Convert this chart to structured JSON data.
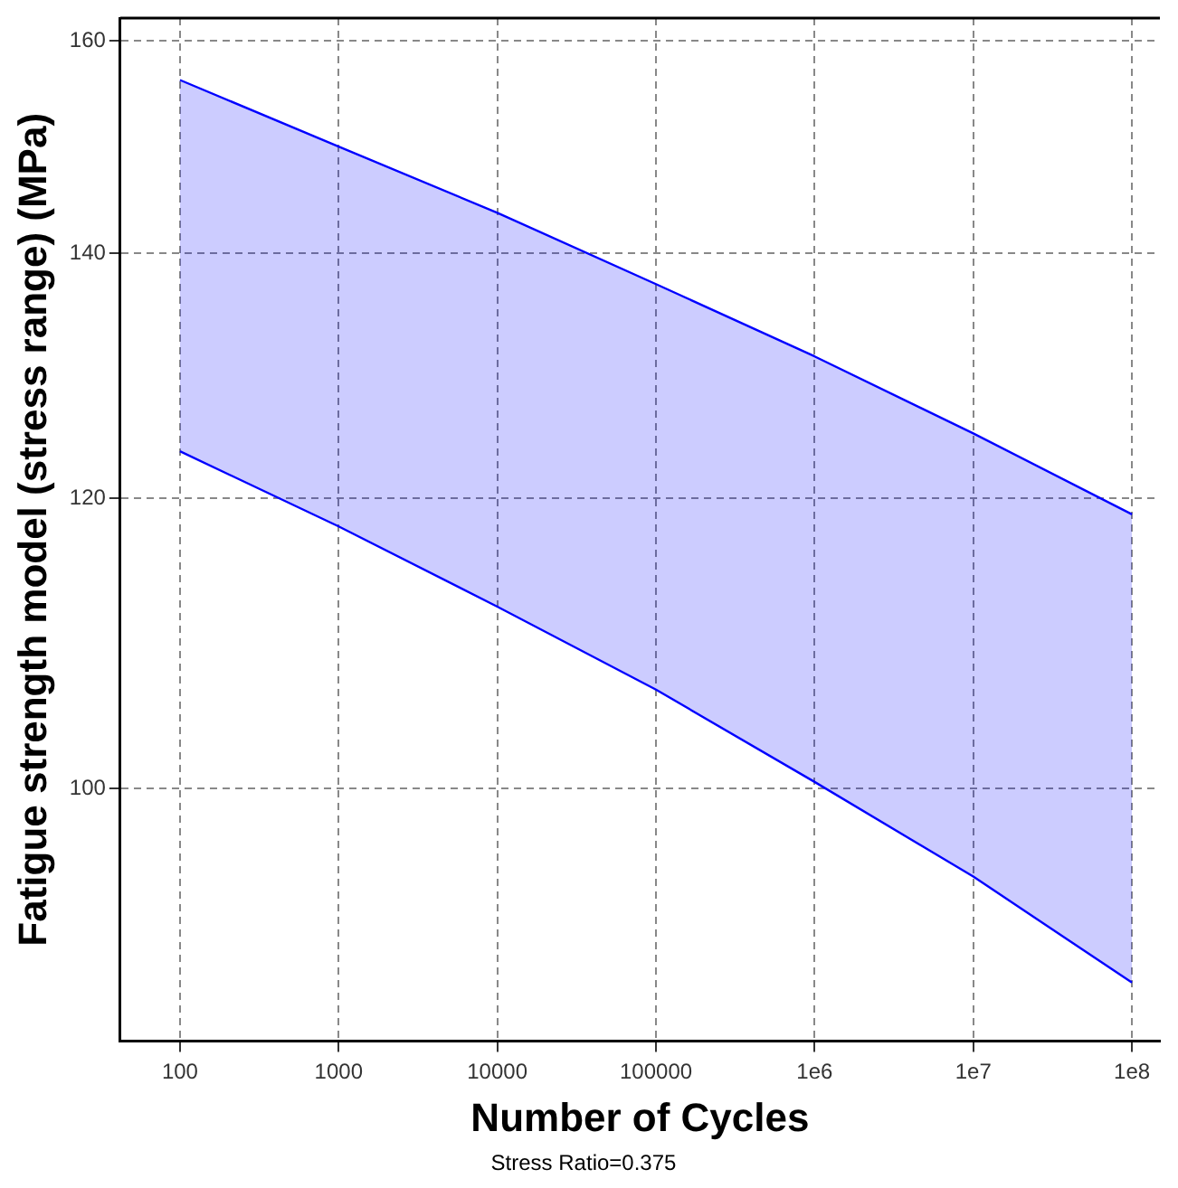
{
  "chart_data": {
    "type": "line",
    "xlabel": "Number of Cycles",
    "ylabel": "Fatigue strength model (stress range) (MPa)",
    "annotations": [
      "Stress Ratio=0.375"
    ],
    "x": [
      100,
      1000,
      10000,
      100000,
      1000000,
      10000000,
      100000000
    ],
    "series": [
      {
        "color": "#0000ff",
        "values": [
          156.1,
          149.7,
          143.6,
          137.3,
          131.2,
          125.0,
          118.8
        ],
        "lower": [
          123.6,
          117.9,
          112.1,
          106.4,
          100.4,
          94.6,
          88.5
        ],
        "upper": [
          156.1,
          149.7,
          143.6,
          137.3,
          131.2,
          125.0,
          118.8
        ]
      },
      {
        "color": "#0000ff",
        "values": [
          123.6,
          117.9,
          112.1,
          106.4,
          100.4,
          94.6,
          88.5
        ]
      }
    ],
    "log": "xy",
    "xlim": [
      42,
      150000000
    ],
    "ylim": [
      85.3,
      162.3
    ],
    "xticks": [
      100,
      1000,
      10000,
      100000,
      {
        "value": 1000000,
        "label": "1e6"
      },
      {
        "value": 10000000,
        "label": "1e7"
      },
      {
        "value": 100000000,
        "label": "1e8"
      }
    ],
    "yticks": [
      100,
      120,
      140,
      160
    ],
    "grid": true,
    "legend": false,
    "marker": "none",
    "line_style": "solid"
  }
}
